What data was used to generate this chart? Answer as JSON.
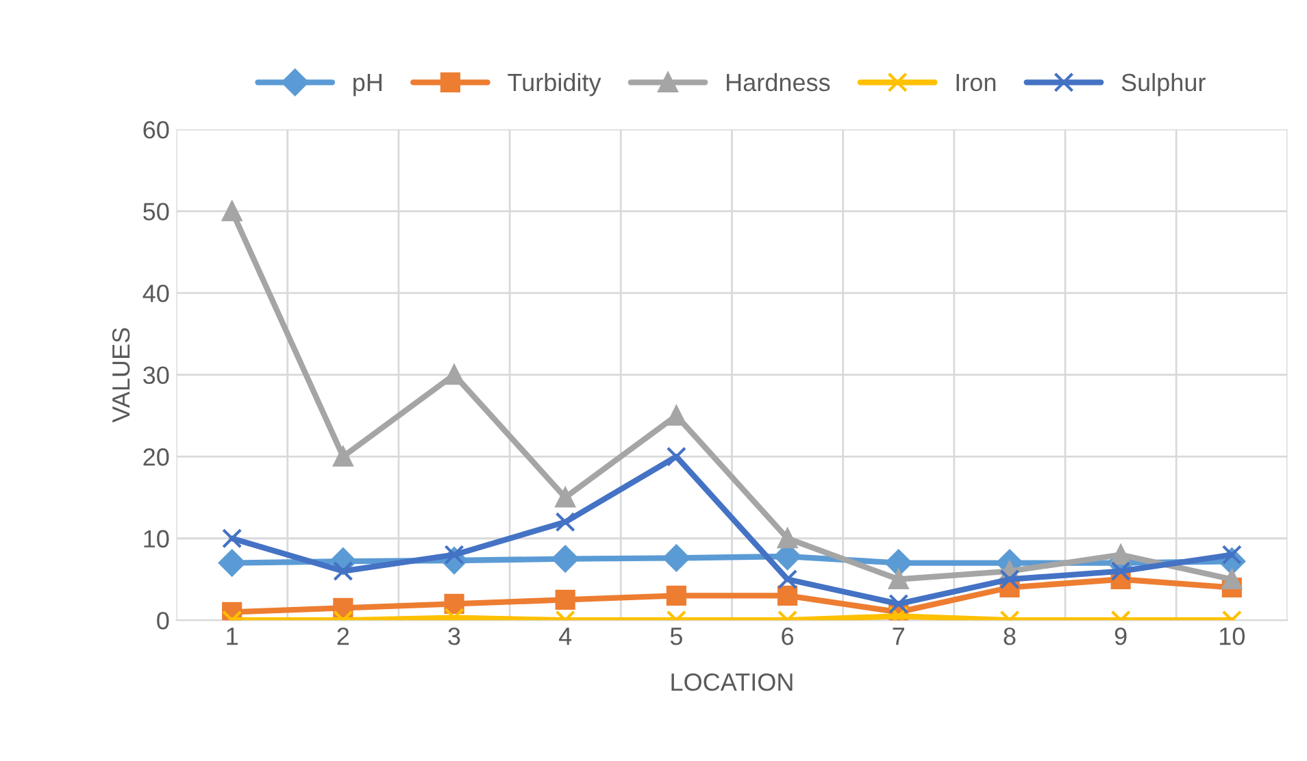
{
  "chart_data": {
    "type": "line",
    "xlabel": "LOCATION",
    "ylabel": "VALUES",
    "categories": [
      "1",
      "2",
      "3",
      "4",
      "5",
      "6",
      "7",
      "8",
      "9",
      "10"
    ],
    "series": [
      {
        "name": "pH",
        "color": "#5b9bd5",
        "marker": "diamond",
        "values": [
          7,
          7.2,
          7.3,
          7.5,
          7.6,
          7.8,
          7,
          7,
          7,
          7.2
        ]
      },
      {
        "name": "Turbidity",
        "color": "#ed7d31",
        "marker": "square",
        "values": [
          1,
          1.5,
          2,
          2.5,
          3,
          3,
          1,
          4,
          5,
          4
        ]
      },
      {
        "name": "Hardness",
        "color": "#a5a5a5",
        "marker": "triangle",
        "values": [
          50,
          20,
          30,
          15,
          25,
          10,
          5,
          6,
          8,
          5
        ]
      },
      {
        "name": "Iron",
        "color": "#ffc000",
        "marker": "cross",
        "values": [
          0,
          0,
          0.3,
          0,
          0,
          0,
          0.5,
          0,
          0,
          0
        ]
      },
      {
        "name": "Sulphur",
        "color": "#4472c4",
        "marker": "cross",
        "values": [
          10,
          6,
          8,
          12,
          20,
          5,
          2,
          5,
          6,
          8
        ]
      }
    ],
    "ylim": [
      0,
      60
    ],
    "yticks": [
      0,
      10,
      20,
      30,
      40,
      50,
      60
    ],
    "grid": true,
    "legend": "top"
  }
}
